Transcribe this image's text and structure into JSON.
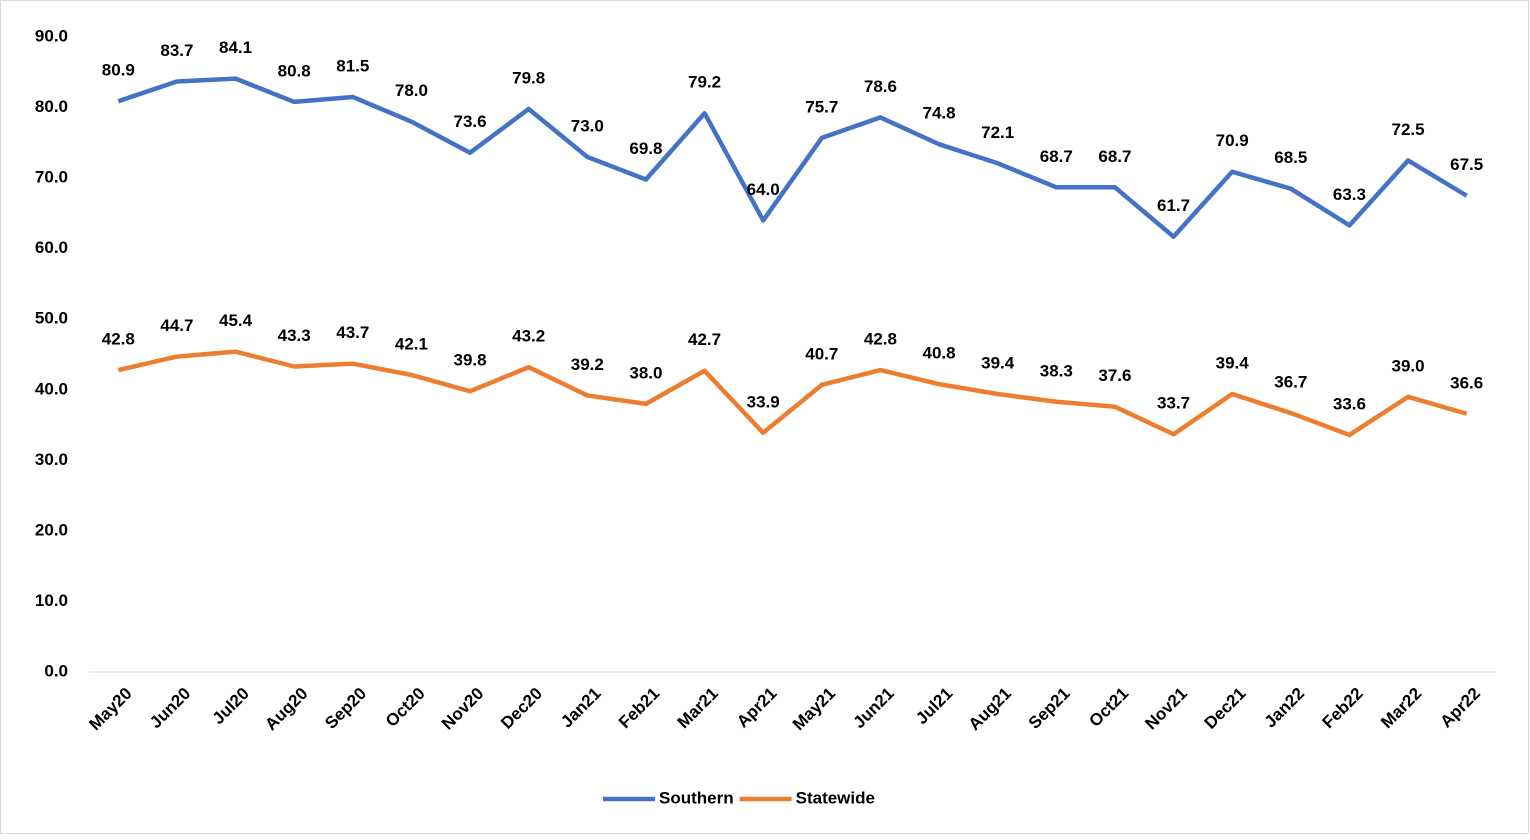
{
  "chart_data": {
    "type": "line",
    "categories": [
      "May20",
      "Jun20",
      "Jul20",
      "Aug20",
      "Sep20",
      "Oct20",
      "Nov20",
      "Dec20",
      "Jan21",
      "Feb21",
      "Mar21",
      "Apr21",
      "May21",
      "Jun21",
      "Jul21",
      "Aug21",
      "Sep21",
      "Oct21",
      "Nov21",
      "Dec21",
      "Jan22",
      "Feb22",
      "Mar22",
      "Apr22"
    ],
    "series": [
      {
        "name": "Southern",
        "color": "#4472c4",
        "values": [
          80.9,
          83.7,
          84.1,
          80.8,
          81.5,
          78.0,
          73.6,
          79.8,
          73.0,
          69.8,
          79.2,
          64.0,
          75.7,
          78.6,
          74.8,
          72.1,
          68.7,
          68.7,
          61.7,
          70.9,
          68.5,
          63.3,
          72.5,
          67.5
        ],
        "value_labels": [
          "80.9",
          "83.7",
          "84.1",
          "80.8",
          "81.5",
          "78.0",
          "73.6",
          "79.8",
          "73.0",
          "69.8",
          "79.2",
          "64.0",
          "75.7",
          "78.6",
          "74.8",
          "72.1",
          "68.7",
          "68.7",
          "61.7",
          "70.9",
          "68.5",
          "63.3",
          "72.5",
          "67.5"
        ]
      },
      {
        "name": "Statewide",
        "color": "#ed7d31",
        "values": [
          42.8,
          44.7,
          45.4,
          43.3,
          43.7,
          42.1,
          39.8,
          43.2,
          39.2,
          38.0,
          42.7,
          33.9,
          40.7,
          42.8,
          40.8,
          39.4,
          38.3,
          37.6,
          33.7,
          39.4,
          36.7,
          33.6,
          39.0,
          36.6
        ],
        "value_labels": [
          "42.8",
          "44.7",
          "45.4",
          "43.3",
          "43.7",
          "42.1",
          "39.8",
          "43.2",
          "39.2",
          "38.0",
          "42.7",
          "33.9",
          "40.7",
          "42.8",
          "40.8",
          "39.4",
          "38.3",
          "37.6",
          "33.7",
          "39.4",
          "36.7",
          "33.6",
          "39.0",
          "36.6"
        ]
      }
    ],
    "ylim": [
      0,
      90
    ],
    "yticks": [
      {
        "value": 0,
        "label": "0.0"
      },
      {
        "value": 10,
        "label": "10.0"
      },
      {
        "value": 20,
        "label": "20.0"
      },
      {
        "value": 30,
        "label": "30.0"
      },
      {
        "value": 40,
        "label": "40.0"
      },
      {
        "value": 50,
        "label": "50.0"
      },
      {
        "value": 60,
        "label": "60.0"
      },
      {
        "value": 70,
        "label": "70.0"
      },
      {
        "value": 80,
        "label": "80.0"
      },
      {
        "value": 90,
        "label": "90.0"
      }
    ],
    "grid": false,
    "legend": "bottom"
  }
}
